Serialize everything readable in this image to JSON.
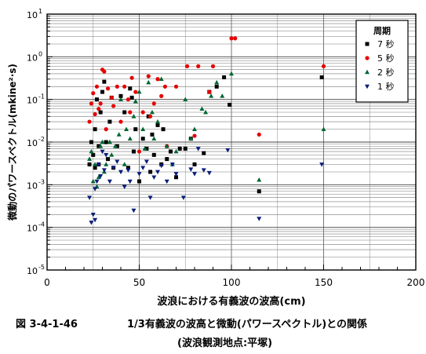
{
  "chart_data": {
    "type": "scatter",
    "title": "",
    "xlabel": "波浪における有義波の波高(cm)",
    "ylabel": "微動のパワースペクトル(mkine²·s)",
    "xlim": [
      0,
      200
    ],
    "ylim": [
      1e-05,
      10
    ],
    "y_scale": "log",
    "x_ticks": [
      "0",
      "50",
      "100",
      "150",
      "200"
    ],
    "y_ticks": [
      {
        "base": "10",
        "exp": "1"
      },
      {
        "base": "10",
        "exp": "0"
      },
      {
        "base": "10",
        "exp": "-1"
      },
      {
        "base": "10",
        "exp": "-2"
      },
      {
        "base": "10",
        "exp": "-3"
      },
      {
        "base": "10",
        "exp": "-4"
      },
      {
        "base": "10",
        "exp": "-5"
      }
    ],
    "grid": true,
    "legend": {
      "title": "周期",
      "placement": "top-right"
    },
    "series": [
      {
        "name": "7 秒",
        "color": "#000000",
        "marker": "square",
        "x": [
          23,
          24,
          25,
          26,
          26,
          27,
          28,
          28,
          29,
          30,
          31,
          32,
          33,
          34,
          35,
          36,
          38,
          40,
          42,
          44,
          45,
          46,
          47,
          48,
          50,
          52,
          54,
          55,
          56,
          57,
          58,
          60,
          62,
          63,
          65,
          67,
          70,
          72,
          75,
          78,
          80,
          85,
          88,
          92,
          96,
          99,
          115,
          149
        ],
        "y": [
          0.003,
          0.01,
          0.005,
          0.0025,
          0.02,
          0.1,
          0.003,
          0.008,
          0.05,
          0.15,
          0.26,
          0.01,
          0.004,
          0.03,
          0.11,
          0.0025,
          0.008,
          0.12,
          0.05,
          0.0025,
          0.18,
          0.11,
          0.006,
          0.02,
          0.0012,
          0.012,
          0.007,
          0.04,
          0.002,
          0.015,
          0.005,
          0.025,
          0.003,
          0.02,
          0.004,
          0.006,
          0.0015,
          0.007,
          0.007,
          0.012,
          0.003,
          0.0055,
          0.15,
          0.2,
          0.33,
          0.075,
          0.0007,
          0.33
        ]
      },
      {
        "name": "5 秒",
        "color": "#e60000",
        "marker": "circle",
        "x": [
          23,
          24,
          25,
          26,
          27,
          28,
          29,
          30,
          31,
          32,
          33,
          35,
          36,
          38,
          40,
          42,
          44,
          45,
          46,
          48,
          50,
          52,
          55,
          56,
          58,
          60,
          62,
          64,
          65,
          70,
          76,
          80,
          82,
          88,
          90,
          100,
          102,
          115,
          150
        ],
        "y": [
          0.03,
          0.08,
          0.14,
          0.045,
          0.2,
          0.06,
          0.08,
          0.5,
          0.45,
          0.02,
          0.18,
          0.11,
          0.07,
          0.2,
          0.03,
          0.2,
          0.1,
          0.05,
          0.32,
          0.15,
          0.006,
          0.05,
          0.35,
          0.04,
          0.08,
          0.3,
          0.12,
          0.2,
          0.008,
          0.2,
          0.6,
          0.014,
          0.6,
          0.15,
          0.6,
          2.7,
          2.7,
          0.015,
          0.6
        ]
      },
      {
        "name": "2 秒",
        "color": "#006633",
        "marker": "triangle",
        "x": [
          23,
          24,
          25,
          26,
          27,
          28,
          29,
          30,
          31,
          32,
          34,
          35,
          37,
          39,
          40,
          42,
          43,
          45,
          47,
          48,
          50,
          52,
          53,
          55,
          57,
          58,
          60,
          62,
          65,
          68,
          70,
          75,
          78,
          80,
          84,
          86,
          89,
          92,
          95,
          100,
          115,
          150
        ],
        "y": [
          0.004,
          0.006,
          0.0012,
          0.003,
          0.0009,
          0.0015,
          0.008,
          0.01,
          0.002,
          0.003,
          0.01,
          0.005,
          0.008,
          0.015,
          0.1,
          0.003,
          0.02,
          0.012,
          0.04,
          0.09,
          0.15,
          0.02,
          0.007,
          0.25,
          0.05,
          0.012,
          0.03,
          0.3,
          0.008,
          0.003,
          0.006,
          0.1,
          0.012,
          0.02,
          0.06,
          0.05,
          0.12,
          0.25,
          0.12,
          0.4,
          0.0013,
          0.02
        ]
      },
      {
        "name": "1 秒",
        "color": "#0a1e7a",
        "marker": "triangle-down",
        "x": [
          23,
          24,
          25,
          26,
          26,
          27,
          28,
          29,
          30,
          31,
          32,
          34,
          36,
          38,
          40,
          42,
          44,
          45,
          47,
          50,
          52,
          54,
          56,
          58,
          60,
          62,
          65,
          68,
          70,
          74,
          78,
          80,
          82,
          85,
          88,
          98,
          115,
          149
        ],
        "y": [
          0.0005,
          0.00013,
          0.0002,
          0.00015,
          0.0008,
          0.0012,
          0.003,
          0.0016,
          0.006,
          0.0022,
          0.005,
          0.0012,
          0.0025,
          0.0035,
          0.002,
          0.0009,
          0.0022,
          0.0012,
          0.00025,
          0.0018,
          0.0025,
          0.0035,
          0.0005,
          0.0015,
          0.002,
          0.0028,
          0.0012,
          0.003,
          0.0018,
          0.0005,
          0.0023,
          0.0018,
          0.007,
          0.0022,
          0.0019,
          0.0065,
          0.00016,
          0.003
        ]
      }
    ]
  },
  "caption": {
    "figure_number": "図 3-4-1-46",
    "line1": "1/3有義波の波高と微動(パワースペクトル)との関係",
    "line2": "(波浪観測地点:平塚)"
  }
}
